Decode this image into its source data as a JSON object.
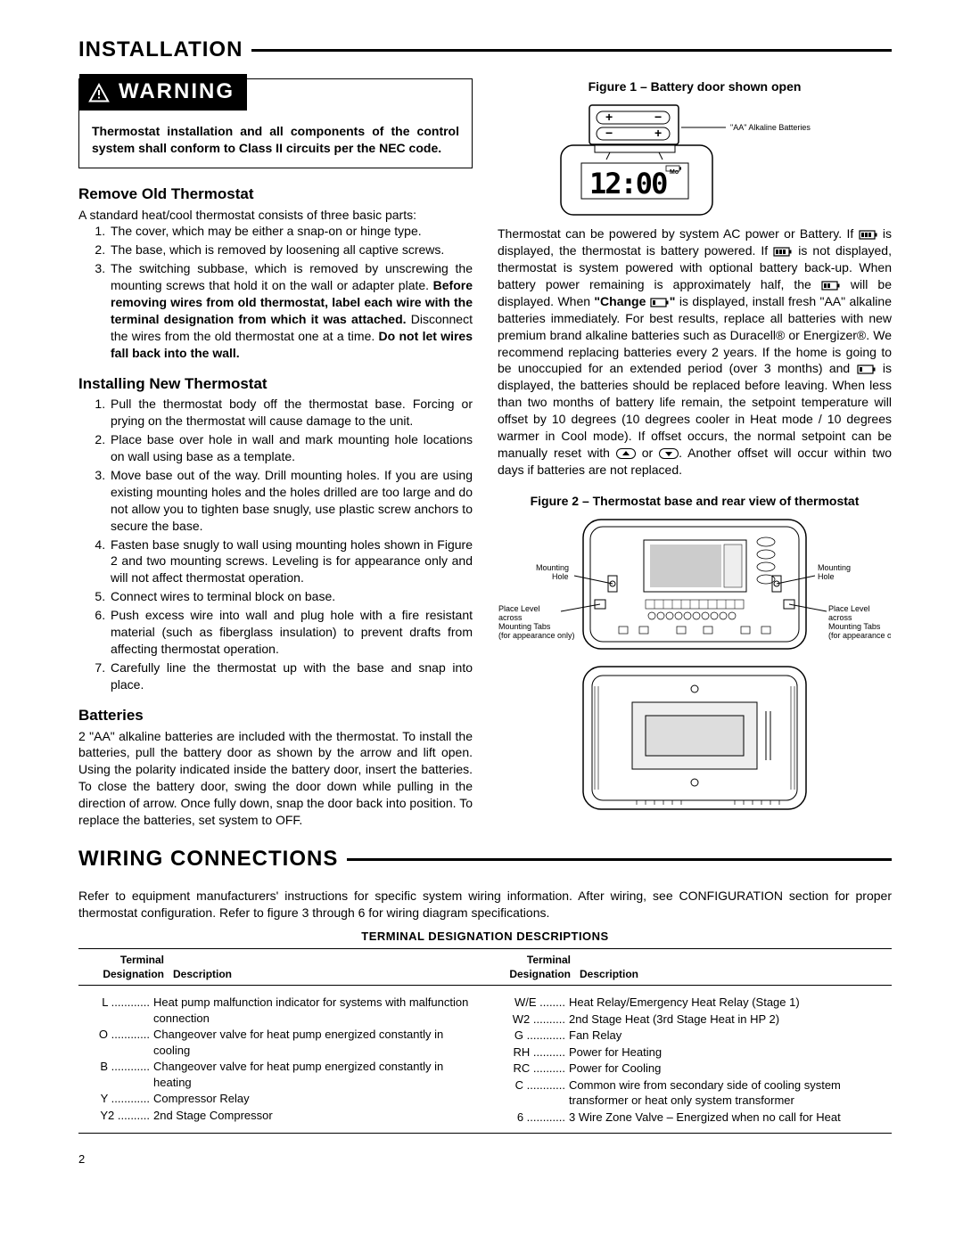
{
  "section1_title": "INSTALLATION",
  "warning_label": "WARNING",
  "warning_text": "Thermostat installation and all components of the control system shall conform to Class II circuits per the NEC code.",
  "remove_head": "Remove Old Thermostat",
  "remove_intro": "A standard heat/cool thermostat consists of three basic parts:",
  "remove_items": {
    "i1": "The cover, which may be either a snap-on or hinge type.",
    "i2": "The base, which is removed by loosening all captive screws.",
    "i3a": "The switching subbase, which is removed by unscrewing the mounting screws that hold it on the wall or adapter plate. ",
    "i3b": "Before removing wires from old thermostat, label each wire with the terminal designation from which it was attached.",
    "i3c": " Disconnect the wires from the old thermostat one at a time. ",
    "i3d": "Do not let wires fall back into the wall."
  },
  "install_head": "Installing New Thermostat",
  "install_items": {
    "i1": "Pull the thermostat body off the thermostat base. Forcing or prying on the thermostat will cause damage to the unit.",
    "i2": "Place base over hole in wall and mark mounting hole locations on wall using base as a template.",
    "i3": "Move base out of the way. Drill mounting holes. If you are using existing mounting holes and the holes drilled are too large and do not allow you to tighten base snugly, use plastic screw anchors to secure the base.",
    "i4": "Fasten base snugly to wall using mounting holes shown in Figure 2 and two mounting screws. Leveling is for appearance only and will not affect thermostat operation.",
    "i5": "Connect wires to terminal block on base.",
    "i6": "Push excess wire into wall and plug hole with a fire resistant material (such as fiberglass insulation) to prevent drafts from affecting thermostat operation.",
    "i7": "Carefully line the thermostat up with the base and snap into place."
  },
  "batt_head": "Batteries",
  "batt_text": "2 \"AA\" alkaline batteries are included with the thermostat. To install the batteries, pull the battery door as shown by the arrow and lift open. Using the polarity indicated inside the battery door, insert the batteries. To close the battery door, swing the door down while pulling in the direction of arrow. Once fully down, snap the door back into position. To replace the batteries, set system to OFF.",
  "fig1_title": "Figure 1 – Battery door shown open",
  "fig1_label": "\"AA\" Alkaline Batteries",
  "power_text": {
    "p1": "Thermostat can be powered by system AC power or Battery. If ",
    "p2": " is displayed, the thermostat is battery powered. If ",
    "p3": " is not displayed, thermostat is system powered with optional battery back-up. When battery power remaining is approximately half, the ",
    "p4": " will be displayed. When ",
    "p4b": "\"Change ",
    "p4c": "\"",
    "p5": " is displayed, install fresh \"AA\" alkaline batteries immediately. For best results, replace all batteries with new premium brand alkaline batteries such as Duracell® or Energizer®. We recommend replacing batteries every 2 years. If the home is going to be unoccupied for an extended period (over 3 months) and ",
    "p6": " is displayed, the batteries should be replaced before leaving. When less than two months of battery life remain, the setpoint temperature will offset by 10 degrees (10 degrees cooler in Heat mode / 10 degrees warmer in Cool mode). If offset occurs, the normal setpoint can be manually reset with ",
    "p7": " or ",
    "p8": ". Another offset will occur within two days if batteries are not replaced."
  },
  "fig2_title": "Figure 2 – Thermostat base and rear view of thermostat",
  "fig2_labels": {
    "mhole": "Mounting\nHole",
    "place": "Place Level\nacross\nMounting Tabs\n(for appearance only)"
  },
  "section2_title": "WIRING CONNECTIONS",
  "wiring_intro": "Refer to equipment manufacturers' instructions for specific system wiring information. After wiring, see CONFIGURATION section for proper thermostat configuration. Refer to figure 3 through 6 for wiring diagram specifications.",
  "term_title": "TERMINAL DESIGNATION DESCRIPTIONS",
  "th_des": "Terminal\nDesignation",
  "th_desc": "Description",
  "terms_left": [
    {
      "d": "L",
      "t": "Heat pump malfunction indicator for systems with malfunction connection"
    },
    {
      "d": "O",
      "t": "Changeover valve for heat pump energized constantly in cooling"
    },
    {
      "d": "B",
      "t": "Changeover valve for heat pump energized constantly in heating"
    },
    {
      "d": "Y",
      "t": "Compressor Relay"
    },
    {
      "d": "Y2",
      "t": "2nd Stage Compressor"
    }
  ],
  "terms_right": [
    {
      "d": "W/E",
      "t": "Heat Relay/Emergency Heat Relay (Stage 1)"
    },
    {
      "d": "W2",
      "t": "2nd Stage Heat (3rd Stage Heat in HP 2)"
    },
    {
      "d": "G",
      "t": "Fan Relay"
    },
    {
      "d": "RH",
      "t": "Power for Heating"
    },
    {
      "d": "RC",
      "t": "Power for Cooling"
    },
    {
      "d": "C",
      "t": "Common wire from secondary side of cooling system transformer or heat only system transformer"
    },
    {
      "d": "6",
      "t": "3 Wire Zone Valve – Energized when no call for Heat"
    }
  ],
  "page": "2"
}
